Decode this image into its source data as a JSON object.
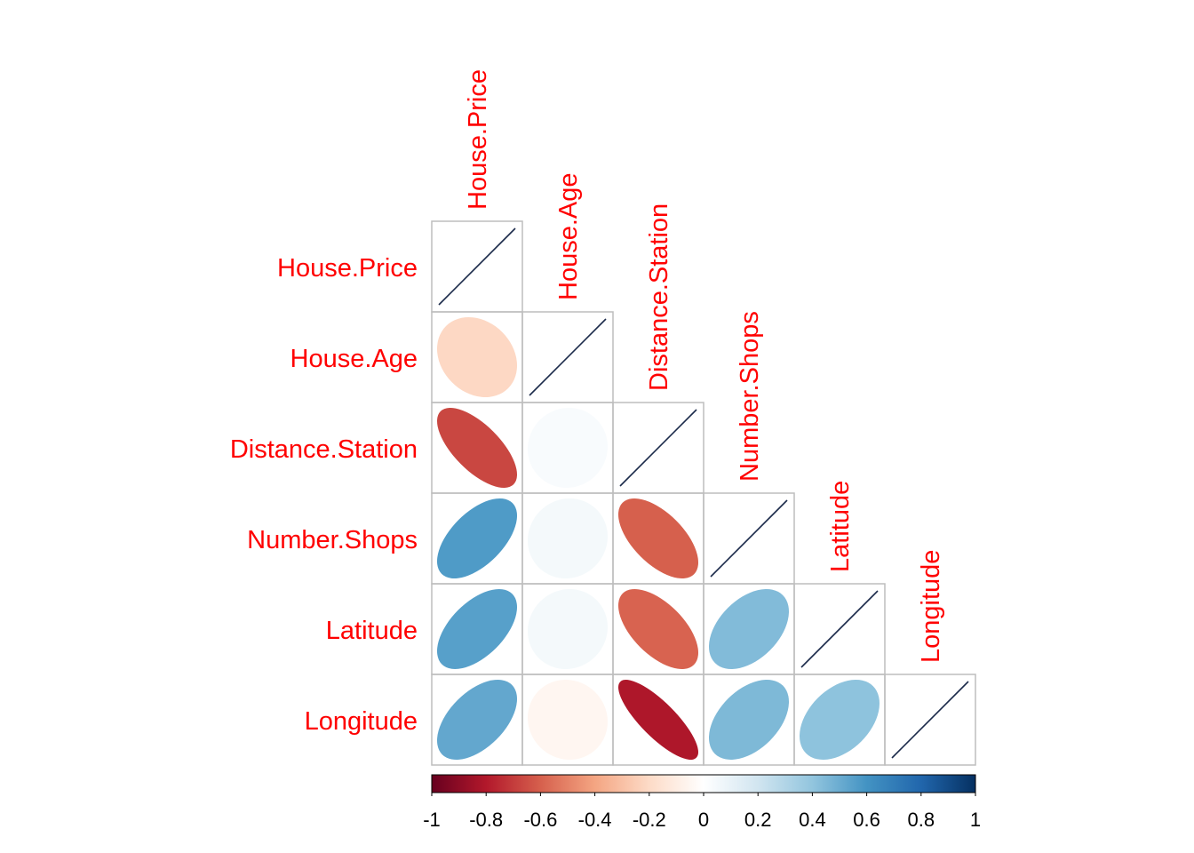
{
  "chart_data": {
    "type": "heatmap",
    "subtype": "correlation-ellipse-lower",
    "variables": [
      "House.Price",
      "House.Age",
      "Distance.Station",
      "Number.Shops",
      "Latitude",
      "Longitude"
    ],
    "matrix": [
      [
        1.0,
        -0.21,
        -0.67,
        0.57,
        0.55,
        0.52
      ],
      [
        -0.21,
        1.0,
        0.03,
        0.05,
        0.05,
        -0.05
      ],
      [
        -0.67,
        0.03,
        1.0,
        -0.6,
        -0.59,
        -0.81
      ],
      [
        0.57,
        0.05,
        -0.6,
        1.0,
        0.44,
        0.45
      ],
      [
        0.55,
        0.05,
        -0.59,
        0.44,
        1.0,
        0.41
      ],
      [
        0.52,
        -0.05,
        -0.81,
        0.45,
        0.41,
        1.0
      ]
    ],
    "colorbar": {
      "range": [
        -1,
        1
      ],
      "ticks": [
        "-1",
        "-0.8",
        "-0.6",
        "-0.4",
        "-0.2",
        "0",
        "0.2",
        "0.4",
        "0.6",
        "0.8",
        "1"
      ],
      "colors": [
        "#67001F",
        "#B2182B",
        "#D6604D",
        "#F4A582",
        "#FDDBC7",
        "#FFFFFF",
        "#D1E5F0",
        "#92C5DE",
        "#4393C3",
        "#2166AC",
        "#053061"
      ],
      "placement": "bottom"
    },
    "label_color": "#FF0000",
    "diagonal_line_color": "#1B2A4A",
    "grid_color": "#BEBEBE"
  }
}
